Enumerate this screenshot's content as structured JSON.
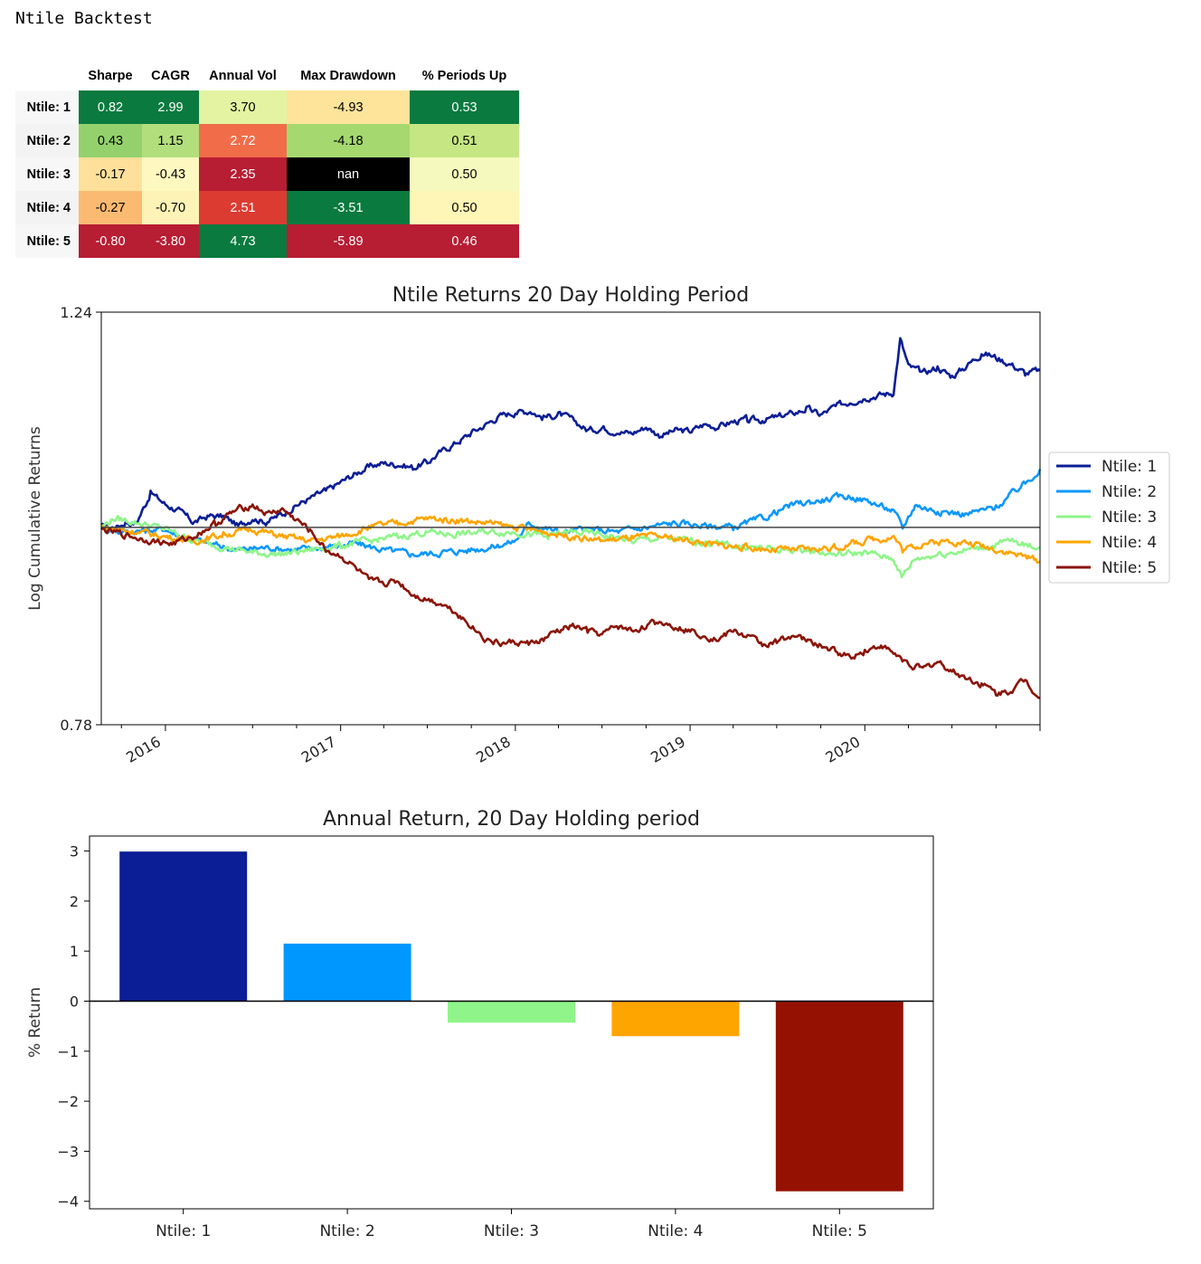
{
  "heading": "Ntile Backtest",
  "table": {
    "columns": [
      "Sharpe",
      "CAGR",
      "Annual Vol",
      "Max Drawdown",
      "% Periods Up"
    ],
    "rows": [
      {
        "label": "Ntile: 1",
        "cells": [
          {
            "text": "0.82",
            "bg": "#0a7a3f",
            "fg": "#ffffff"
          },
          {
            "text": "2.99",
            "bg": "#0a7a3f",
            "fg": "#ffffff"
          },
          {
            "text": "3.70",
            "bg": "#e3f3a2",
            "fg": "#000000"
          },
          {
            "text": "-4.93",
            "bg": "#fee49b",
            "fg": "#000000"
          },
          {
            "text": "0.53",
            "bg": "#0a7a3f",
            "fg": "#ffffff"
          }
        ]
      },
      {
        "label": "Ntile: 2",
        "cells": [
          {
            "text": "0.43",
            "bg": "#94d16c",
            "fg": "#000000"
          },
          {
            "text": "1.15",
            "bg": "#b2de7c",
            "fg": "#000000"
          },
          {
            "text": "2.72",
            "bg": "#f16d49",
            "fg": "#ffffff"
          },
          {
            "text": "-4.18",
            "bg": "#a5d86f",
            "fg": "#000000"
          },
          {
            "text": "0.51",
            "bg": "#c5e683",
            "fg": "#000000"
          }
        ]
      },
      {
        "label": "Ntile: 3",
        "cells": [
          {
            "text": "-0.17",
            "bg": "#fee09a",
            "fg": "#000000"
          },
          {
            "text": "-0.43",
            "bg": "#fdf8c0",
            "fg": "#000000"
          },
          {
            "text": "2.35",
            "bg": "#b71d33",
            "fg": "#ffffff"
          },
          {
            "text": "nan",
            "bg": "#000000",
            "fg": "#ffffff"
          },
          {
            "text": "0.50",
            "bg": "#f5f9bd",
            "fg": "#000000"
          }
        ]
      },
      {
        "label": "Ntile: 4",
        "cells": [
          {
            "text": "-0.27",
            "bg": "#fbba72",
            "fg": "#000000"
          },
          {
            "text": "-0.70",
            "bg": "#fdf3b6",
            "fg": "#000000"
          },
          {
            "text": "2.51",
            "bg": "#dc3b31",
            "fg": "#ffffff"
          },
          {
            "text": "-3.51",
            "bg": "#0a7a3f",
            "fg": "#ffffff"
          },
          {
            "text": "0.50",
            "bg": "#fef6b6",
            "fg": "#000000"
          }
        ]
      },
      {
        "label": "Ntile: 5",
        "cells": [
          {
            "text": "-0.80",
            "bg": "#b71d33",
            "fg": "#ffffff"
          },
          {
            "text": "-3.80",
            "bg": "#b71d33",
            "fg": "#ffffff"
          },
          {
            "text": "4.73",
            "bg": "#0a7a3f",
            "fg": "#ffffff"
          },
          {
            "text": "-5.89",
            "bg": "#b71d33",
            "fg": "#ffffff"
          },
          {
            "text": "0.46",
            "bg": "#b71d33",
            "fg": "#ffffff"
          }
        ]
      }
    ]
  },
  "chart_data": [
    {
      "type": "line",
      "title": "Ntile Returns 20 Day Holding Period",
      "xlabel": "",
      "ylabel": "Log Cumulative Returns",
      "xlim": [
        "2015-08-20",
        "2021-01-01"
      ],
      "ylim": [
        0.78,
        1.24
      ],
      "y_tick_labels": [
        "0.78",
        "1.24"
      ],
      "x_tick_labels": [
        "2016",
        "2017",
        "2018",
        "2019",
        "2020"
      ],
      "baseline_y": 1.0,
      "legend": "right",
      "series": [
        {
          "name": "Ntile: 1",
          "color": "#0b1e96",
          "x": [
            "2015-08-20",
            "2015-09-15",
            "2015-10-10",
            "2015-11-01",
            "2015-12-01",
            "2016-01-01",
            "2016-02-01",
            "2016-03-01",
            "2016-04-01",
            "2016-05-01",
            "2016-06-01",
            "2016-07-01",
            "2016-08-01",
            "2016-09-01",
            "2016-10-01",
            "2016-11-01",
            "2016-12-01",
            "2017-01-01",
            "2017-02-01",
            "2017-03-01",
            "2017-04-01",
            "2017-05-01",
            "2017-06-01",
            "2017-07-01",
            "2017-08-01",
            "2017-09-01",
            "2017-10-01",
            "2017-11-01",
            "2017-12-01",
            "2018-01-01",
            "2018-02-01",
            "2018-03-01",
            "2018-04-01",
            "2018-05-01",
            "2018-06-01",
            "2018-07-01",
            "2018-08-01",
            "2018-09-01",
            "2018-10-01",
            "2018-11-01",
            "2018-12-01",
            "2019-01-01",
            "2019-02-01",
            "2019-03-01",
            "2019-04-01",
            "2019-05-01",
            "2019-06-01",
            "2019-07-01",
            "2019-08-01",
            "2019-09-01",
            "2019-10-01",
            "2019-11-01",
            "2019-12-01",
            "2020-01-01",
            "2020-02-01",
            "2020-03-01",
            "2020-03-15",
            "2020-04-01",
            "2020-05-01",
            "2020-06-01",
            "2020-07-01",
            "2020-08-01",
            "2020-09-01",
            "2020-10-01",
            "2020-11-01",
            "2020-12-01",
            "2021-01-01"
          ],
          "y": [
            1.0,
            1.0,
            1.005,
            1.005,
            1.038,
            1.026,
            1.018,
            1.005,
            1.013,
            1.012,
            1.002,
            1.01,
            1.006,
            1.015,
            1.025,
            1.033,
            1.041,
            1.05,
            1.06,
            1.068,
            1.072,
            1.07,
            1.067,
            1.073,
            1.085,
            1.095,
            1.105,
            1.115,
            1.125,
            1.128,
            1.13,
            1.122,
            1.126,
            1.12,
            1.108,
            1.111,
            1.107,
            1.105,
            1.112,
            1.102,
            1.108,
            1.107,
            1.115,
            1.112,
            1.118,
            1.12,
            1.119,
            1.123,
            1.127,
            1.132,
            1.125,
            1.135,
            1.14,
            1.145,
            1.148,
            1.15,
            1.21,
            1.18,
            1.172,
            1.178,
            1.168,
            1.18,
            1.194,
            1.19,
            1.182,
            1.172,
            1.175
          ]
        },
        {
          "name": "Ntile: 2",
          "color": "#0d98fb",
          "x": [
            "2015-08-20",
            "2015-10-01",
            "2016-01-01",
            "2016-02-01",
            "2016-04-01",
            "2016-06-01",
            "2016-08-01",
            "2016-10-01",
            "2016-12-01",
            "2017-02-01",
            "2017-04-01",
            "2017-06-01",
            "2017-08-01",
            "2017-10-01",
            "2017-12-01",
            "2018-01-01",
            "2018-02-01",
            "2018-04-01",
            "2018-06-01",
            "2018-08-01",
            "2018-10-01",
            "2018-12-01",
            "2019-02-01",
            "2019-04-01",
            "2019-06-01",
            "2019-08-01",
            "2019-10-01",
            "2019-12-01",
            "2020-01-15",
            "2020-03-01",
            "2020-03-20",
            "2020-04-15",
            "2020-06-01",
            "2020-08-01",
            "2020-10-01",
            "2020-12-01",
            "2021-01-01"
          ],
          "y": [
            1.0,
            0.995,
            0.998,
            0.99,
            0.982,
            0.975,
            0.978,
            0.975,
            0.978,
            0.982,
            0.975,
            0.97,
            0.972,
            0.975,
            0.98,
            0.985,
            1.005,
            0.995,
            0.998,
            0.995,
            1.0,
            1.005,
            1.002,
            1.0,
            1.01,
            1.025,
            1.03,
            1.035,
            1.028,
            1.018,
            1.0,
            1.025,
            1.018,
            1.015,
            1.022,
            1.05,
            1.065
          ]
        },
        {
          "name": "Ntile: 3",
          "color": "#8ff58a",
          "x": [
            "2015-08-20",
            "2015-09-15",
            "2015-11-01",
            "2016-01-01",
            "2016-03-01",
            "2016-05-01",
            "2016-07-01",
            "2016-09-01",
            "2016-11-01",
            "2017-01-01",
            "2017-03-01",
            "2017-05-01",
            "2017-07-01",
            "2017-09-01",
            "2017-11-01",
            "2018-01-01",
            "2018-03-01",
            "2018-05-01",
            "2018-07-01",
            "2018-09-01",
            "2018-11-01",
            "2019-01-01",
            "2019-03-01",
            "2019-05-01",
            "2019-07-01",
            "2019-09-01",
            "2019-11-01",
            "2020-01-01",
            "2020-03-01",
            "2020-03-18",
            "2020-04-15",
            "2020-06-01",
            "2020-08-01",
            "2020-10-01",
            "2020-11-01",
            "2020-12-01",
            "2021-01-01"
          ],
          "y": [
            1.0,
            1.01,
            1.006,
            0.998,
            0.985,
            0.978,
            0.972,
            0.97,
            0.975,
            0.98,
            0.985,
            0.99,
            0.995,
            0.992,
            0.995,
            0.995,
            0.99,
            0.995,
            0.992,
            0.985,
            0.988,
            0.985,
            0.982,
            0.978,
            0.975,
            0.975,
            0.97,
            0.972,
            0.965,
            0.945,
            0.965,
            0.97,
            0.975,
            0.98,
            0.985,
            0.98,
            0.978
          ]
        },
        {
          "name": "Ntile: 4",
          "color": "#ffa500",
          "x": [
            "2015-08-20",
            "2015-11-01",
            "2016-01-01",
            "2016-03-01",
            "2016-05-01",
            "2016-07-01",
            "2016-09-01",
            "2016-11-01",
            "2017-01-01",
            "2017-03-01",
            "2017-05-01",
            "2017-07-01",
            "2017-09-01",
            "2017-11-01",
            "2018-01-01",
            "2018-03-01",
            "2018-05-01",
            "2018-07-01",
            "2018-09-01",
            "2018-11-01",
            "2019-01-01",
            "2019-03-01",
            "2019-05-01",
            "2019-07-01",
            "2019-09-01",
            "2019-11-01",
            "2020-01-01",
            "2020-03-01",
            "2020-03-20",
            "2020-05-01",
            "2020-07-01",
            "2020-09-01",
            "2020-11-01",
            "2021-01-01"
          ],
          "y": [
            1.0,
            0.995,
            0.99,
            0.985,
            0.992,
            0.998,
            0.99,
            0.985,
            0.99,
            1.0,
            1.005,
            1.01,
            1.008,
            1.005,
            1.0,
            0.995,
            0.99,
            0.985,
            0.988,
            0.99,
            0.985,
            0.98,
            0.978,
            0.975,
            0.975,
            0.978,
            0.985,
            0.99,
            0.975,
            0.982,
            0.985,
            0.98,
            0.972,
            0.962
          ]
        },
        {
          "name": "Ntile: 5",
          "color": "#8b1508",
          "x": [
            "2015-08-20",
            "2015-10-01",
            "2015-12-01",
            "2016-01-15",
            "2016-03-01",
            "2016-04-15",
            "2016-06-01",
            "2016-07-01",
            "2016-08-01",
            "2016-09-01",
            "2016-10-01",
            "2016-11-01",
            "2016-12-01",
            "2017-01-01",
            "2017-02-01",
            "2017-03-01",
            "2017-04-01",
            "2017-05-01",
            "2017-06-01",
            "2017-07-01",
            "2017-08-01",
            "2017-09-01",
            "2017-10-01",
            "2017-11-01",
            "2017-12-01",
            "2018-01-01",
            "2018-02-01",
            "2018-03-01",
            "2018-04-01",
            "2018-05-01",
            "2018-06-01",
            "2018-07-01",
            "2018-08-01",
            "2018-09-01",
            "2018-10-01",
            "2018-11-01",
            "2018-12-01",
            "2019-01-01",
            "2019-02-01",
            "2019-03-01",
            "2019-04-01",
            "2019-05-01",
            "2019-06-01",
            "2019-07-01",
            "2019-08-01",
            "2019-09-01",
            "2019-10-01",
            "2019-11-01",
            "2019-12-01",
            "2020-01-01",
            "2020-02-01",
            "2020-03-01",
            "2020-04-01",
            "2020-05-01",
            "2020-06-01",
            "2020-07-01",
            "2020-08-01",
            "2020-09-01",
            "2020-10-01",
            "2020-11-01",
            "2020-12-01",
            "2021-01-01"
          ],
          "y": [
            0.997,
            0.993,
            0.985,
            0.982,
            0.99,
            1.005,
            1.02,
            1.025,
            1.015,
            1.02,
            1.008,
            0.995,
            0.975,
            0.968,
            0.955,
            0.94,
            0.938,
            0.94,
            0.925,
            0.92,
            0.915,
            0.905,
            0.89,
            0.875,
            0.87,
            0.872,
            0.87,
            0.875,
            0.885,
            0.89,
            0.885,
            0.88,
            0.89,
            0.885,
            0.89,
            0.895,
            0.89,
            0.885,
            0.88,
            0.875,
            0.885,
            0.878,
            0.87,
            0.872,
            0.88,
            0.874,
            0.868,
            0.862,
            0.856,
            0.862,
            0.868,
            0.86,
            0.848,
            0.842,
            0.85,
            0.84,
            0.832,
            0.825,
            0.815,
            0.818,
            0.83,
            0.81
          ]
        }
      ]
    },
    {
      "type": "bar",
      "title": "Annual Return, 20 Day Holding period",
      "xlabel": "",
      "ylabel": "% Return",
      "ylim": [
        -4.15,
        3.3
      ],
      "y_ticks": [
        3,
        2,
        1,
        0,
        -1,
        -2,
        -3,
        -4
      ],
      "y_tick_labels": [
        "3",
        "2",
        "1",
        "0",
        "−1",
        "−2",
        "−3",
        "−4"
      ],
      "categories": [
        "Ntile: 1",
        "Ntile: 2",
        "Ntile: 3",
        "Ntile: 4",
        "Ntile: 5"
      ],
      "values": [
        2.99,
        1.15,
        -0.43,
        -0.7,
        -3.8
      ],
      "colors": [
        "#0b1e96",
        "#0097ff",
        "#8ff58a",
        "#ffa500",
        "#951203"
      ]
    }
  ]
}
